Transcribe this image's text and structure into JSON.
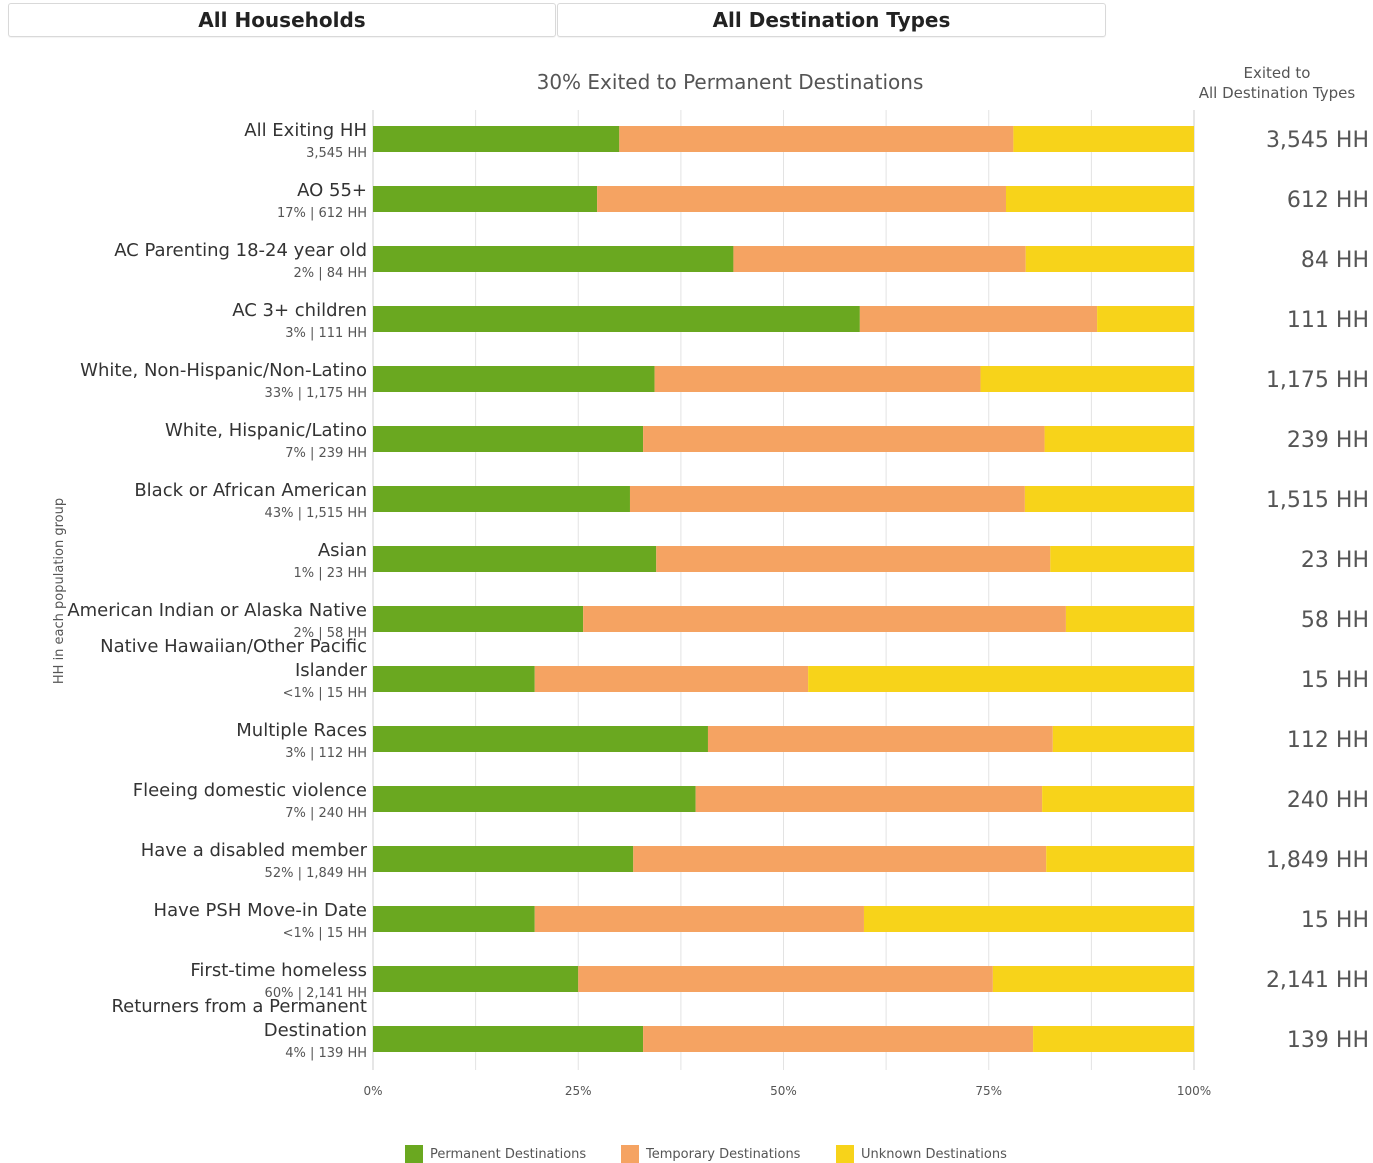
{
  "filters": {
    "household_label": "All Households",
    "destination_label": "All Destination Types"
  },
  "chart_data": {
    "type": "bar",
    "orientation": "horizontal",
    "stacked": true,
    "title": "30% Exited to Permanent Destinations",
    "ylabel": "HH in each population group",
    "right_column_header": [
      "Exited to",
      "All Destination Types"
    ],
    "xlim": [
      0,
      100
    ],
    "x_ticks": [
      "0%",
      "25%",
      "50%",
      "75%",
      "100%"
    ],
    "grid": true,
    "legend_position": "bottom",
    "categories": [
      {
        "label": [
          "All Exiting HH"
        ],
        "sub": "3,545 HH",
        "total": "3,545 HH"
      },
      {
        "label": [
          "AO 55+"
        ],
        "sub": "17% | 612 HH",
        "total": "612 HH"
      },
      {
        "label": [
          "AC Parenting 18-24 year old"
        ],
        "sub": "2% | 84 HH",
        "total": "84 HH"
      },
      {
        "label": [
          "AC 3+ children"
        ],
        "sub": "3% | 111 HH",
        "total": "111 HH"
      },
      {
        "label": [
          "White, Non-Hispanic/Non-Latino"
        ],
        "sub": "33% | 1,175 HH",
        "total": "1,175 HH"
      },
      {
        "label": [
          "White, Hispanic/Latino"
        ],
        "sub": "7% | 239 HH",
        "total": "239 HH"
      },
      {
        "label": [
          "Black or African American"
        ],
        "sub": "43% | 1,515 HH",
        "total": "1,515 HH"
      },
      {
        "label": [
          "Asian"
        ],
        "sub": "1% | 23 HH",
        "total": "23 HH"
      },
      {
        "label": [
          "American Indian or Alaska Native"
        ],
        "sub": "2% | 58 HH",
        "total": "58 HH"
      },
      {
        "label": [
          "Native Hawaiian/Other Pacific",
          "Islander"
        ],
        "sub": "<1% | 15 HH",
        "total": "15 HH"
      },
      {
        "label": [
          "Multiple Races"
        ],
        "sub": "3% | 112 HH",
        "total": "112 HH"
      },
      {
        "label": [
          "Fleeing domestic violence"
        ],
        "sub": "7% | 240 HH",
        "total": "240 HH"
      },
      {
        "label": [
          "Have a disabled member"
        ],
        "sub": "52% | 1,849 HH",
        "total": "1,849 HH"
      },
      {
        "label": [
          "Have PSH Move-in Date"
        ],
        "sub": "<1% | 15 HH",
        "total": "15 HH"
      },
      {
        "label": [
          "First-time homeless"
        ],
        "sub": "60% | 2,141 HH",
        "total": "2,141 HH"
      },
      {
        "label": [
          "Returners from a Permanent",
          "Destination"
        ],
        "sub": "4% | 139 HH",
        "total": "139 HH"
      }
    ],
    "series": [
      {
        "name": "Permanent Destinations",
        "color": "#6aa820",
        "values": [
          30,
          27.3,
          43.9,
          59.3,
          34.3,
          32.9,
          31.3,
          34.5,
          25.6,
          19.7,
          40.8,
          39.3,
          31.7,
          19.7,
          25,
          32.9
        ]
      },
      {
        "name": "Temporary Destinations",
        "color": "#f5a362",
        "values": [
          48,
          49.8,
          35.6,
          28.9,
          39.7,
          48.9,
          48.1,
          48,
          58.8,
          33.3,
          42,
          42.2,
          50.3,
          40.1,
          50.5,
          47.5
        ]
      },
      {
        "name": "Unknown Destinations",
        "color": "#f7d31a",
        "values": [
          22,
          22.9,
          20.5,
          11.8,
          26,
          18.2,
          20.6,
          17.5,
          15.6,
          47,
          17.2,
          18.5,
          18,
          40.2,
          24.5,
          19.6
        ]
      }
    ]
  }
}
